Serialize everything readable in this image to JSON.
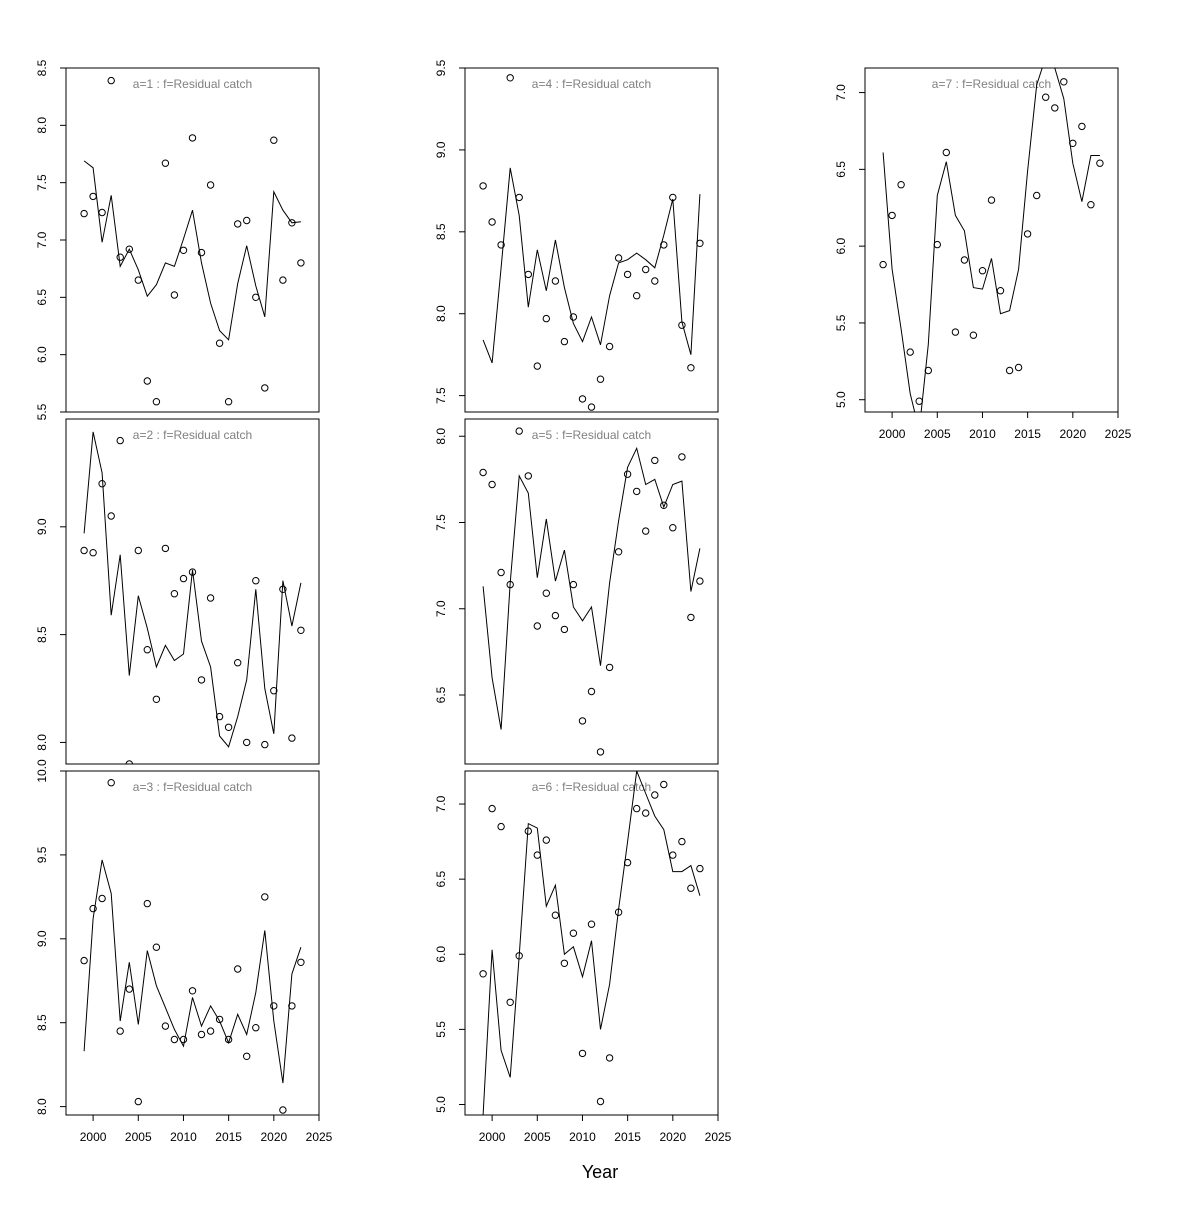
{
  "figure": {
    "xlabel": "Year"
  },
  "chart_data": [
    {
      "type": "scatter",
      "title": "a=1  :  f=Residual catch",
      "xlim": [
        1997,
        2025
      ],
      "ylim": [
        5.5,
        8.5
      ],
      "yticks": [
        "5.5",
        "6.0",
        "6.5",
        "7.0",
        "7.5",
        "8.0",
        "8.5"
      ],
      "x": [
        1999,
        2000,
        2001,
        2002,
        2003,
        2004,
        2005,
        2006,
        2007,
        2008,
        2009,
        2010,
        2011,
        2012,
        2013,
        2014,
        2015,
        2016,
        2017,
        2018,
        2019,
        2020,
        2021,
        2022,
        2023
      ],
      "series": [
        {
          "style": "points",
          "values": [
            7.23,
            7.38,
            7.24,
            8.39,
            6.85,
            6.92,
            6.65,
            5.77,
            5.59,
            7.67,
            6.52,
            6.91,
            7.89,
            6.89,
            7.48,
            6.1,
            5.59,
            7.14,
            7.17,
            6.5,
            5.71,
            7.87,
            6.65,
            7.15,
            6.8
          ]
        },
        {
          "style": "line",
          "values": [
            7.69,
            7.63,
            6.98,
            7.39,
            6.77,
            6.92,
            6.74,
            6.51,
            6.61,
            6.8,
            6.77,
            7.01,
            7.26,
            6.8,
            6.45,
            6.21,
            6.13,
            6.62,
            6.95,
            6.6,
            6.33,
            7.42,
            7.26,
            7.15,
            7.16
          ]
        }
      ]
    },
    {
      "type": "scatter",
      "title": "a=2  :  f=Residual catch",
      "xlim": [
        1997,
        2025
      ],
      "ylim": [
        7.9,
        9.5
      ],
      "yticks": [
        "8.0",
        "8.5",
        "9.0"
      ],
      "x": [
        1999,
        2000,
        2001,
        2002,
        2003,
        2004,
        2005,
        2006,
        2007,
        2008,
        2009,
        2010,
        2011,
        2012,
        2013,
        2014,
        2015,
        2016,
        2017,
        2018,
        2019,
        2020,
        2021,
        2022,
        2023
      ],
      "series": [
        {
          "style": "points",
          "values": [
            8.89,
            8.88,
            9.2,
            9.05,
            9.4,
            7.9,
            8.89,
            8.43,
            8.2,
            8.9,
            8.69,
            8.76,
            8.79,
            8.29,
            8.67,
            8.12,
            8.07,
            8.37,
            8.0,
            8.75,
            7.99,
            8.24,
            8.71,
            8.02,
            8.52
          ]
        },
        {
          "style": "line",
          "values": [
            8.97,
            9.44,
            9.25,
            8.59,
            8.87,
            8.31,
            8.68,
            8.53,
            8.35,
            8.45,
            8.38,
            8.41,
            8.8,
            8.47,
            8.35,
            8.03,
            7.98,
            8.12,
            8.29,
            8.71,
            8.25,
            8.04,
            8.75,
            8.54,
            8.74
          ]
        }
      ]
    },
    {
      "type": "scatter",
      "title": "a=3  :  f=Residual catch",
      "xlim": [
        1997,
        2025
      ],
      "ylim": [
        7.95,
        10.0
      ],
      "yticks": [
        "8.0",
        "8.5",
        "9.0",
        "9.5",
        "10.0"
      ],
      "x": [
        1999,
        2000,
        2001,
        2002,
        2003,
        2004,
        2005,
        2006,
        2007,
        2008,
        2009,
        2010,
        2011,
        2012,
        2013,
        2014,
        2015,
        2016,
        2017,
        2018,
        2019,
        2020,
        2021,
        2022,
        2023
      ],
      "series": [
        {
          "style": "points",
          "values": [
            8.87,
            9.18,
            9.24,
            9.93,
            8.45,
            8.7,
            8.03,
            9.21,
            8.95,
            8.48,
            8.4,
            8.4,
            8.69,
            8.43,
            8.45,
            8.52,
            8.4,
            8.82,
            8.3,
            8.47,
            9.25,
            8.6,
            7.98,
            8.6,
            8.86
          ]
        },
        {
          "style": "line",
          "values": [
            8.33,
            9.12,
            9.47,
            9.27,
            8.51,
            8.86,
            8.49,
            8.93,
            8.72,
            8.59,
            8.46,
            8.36,
            8.65,
            8.48,
            8.6,
            8.51,
            8.38,
            8.55,
            8.43,
            8.68,
            9.05,
            8.51,
            8.14,
            8.79,
            8.95
          ]
        }
      ]
    },
    {
      "type": "scatter",
      "title": "a=4  :  f=Residual catch",
      "xlim": [
        1997,
        2025
      ],
      "ylim": [
        7.4,
        9.5
      ],
      "yticks": [
        "7.5",
        "8.0",
        "8.5",
        "9.0",
        "9.5"
      ],
      "x": [
        1999,
        2000,
        2001,
        2002,
        2003,
        2004,
        2005,
        2006,
        2007,
        2008,
        2009,
        2010,
        2011,
        2012,
        2013,
        2014,
        2015,
        2016,
        2017,
        2018,
        2019,
        2020,
        2021,
        2022,
        2023
      ],
      "series": [
        {
          "style": "points",
          "values": [
            8.78,
            8.56,
            8.42,
            9.44,
            8.71,
            8.24,
            7.68,
            7.97,
            8.2,
            7.83,
            7.98,
            7.48,
            7.43,
            7.6,
            7.8,
            8.34,
            8.24,
            8.11,
            8.27,
            8.2,
            8.42,
            8.71,
            7.93,
            7.67,
            8.43
          ]
        },
        {
          "style": "line",
          "values": [
            7.84,
            7.7,
            8.28,
            8.89,
            8.6,
            8.04,
            8.39,
            8.14,
            8.45,
            8.16,
            7.94,
            7.83,
            7.98,
            7.81,
            8.11,
            8.31,
            8.33,
            8.37,
            8.33,
            8.28,
            8.48,
            8.7,
            7.95,
            7.75,
            8.73
          ]
        }
      ]
    },
    {
      "type": "scatter",
      "title": "a=5  :  f=Residual catch",
      "xlim": [
        1997,
        2025
      ],
      "ylim": [
        6.1,
        8.1
      ],
      "yticks": [
        "6.5",
        "7.0",
        "7.5",
        "8.0"
      ],
      "x": [
        1999,
        2000,
        2001,
        2002,
        2003,
        2004,
        2005,
        2006,
        2007,
        2008,
        2009,
        2010,
        2011,
        2012,
        2013,
        2014,
        2015,
        2016,
        2017,
        2018,
        2019,
        2020,
        2021,
        2022,
        2023
      ],
      "series": [
        {
          "style": "points",
          "values": [
            7.79,
            7.72,
            7.21,
            7.14,
            8.03,
            7.77,
            6.9,
            7.09,
            6.96,
            6.88,
            7.14,
            6.35,
            6.52,
            6.17,
            6.66,
            7.33,
            7.78,
            7.68,
            7.45,
            7.86,
            7.6,
            7.47,
            7.88,
            6.95,
            7.16
          ]
        },
        {
          "style": "line",
          "values": [
            7.13,
            6.6,
            6.3,
            7.15,
            7.77,
            7.67,
            7.18,
            7.52,
            7.16,
            7.34,
            7.01,
            6.93,
            7.01,
            6.67,
            7.15,
            7.51,
            7.82,
            7.93,
            7.72,
            7.75,
            7.59,
            7.72,
            7.74,
            7.1,
            7.35
          ]
        }
      ]
    },
    {
      "type": "scatter",
      "title": "a=6  :  f=Residual catch",
      "xlim": [
        1997,
        2025
      ],
      "ylim": [
        4.93,
        7.22
      ],
      "yticks": [
        "5.0",
        "5.5",
        "6.0",
        "6.5",
        "7.0"
      ],
      "x": [
        1999,
        2000,
        2001,
        2002,
        2003,
        2004,
        2005,
        2006,
        2007,
        2008,
        2009,
        2010,
        2011,
        2012,
        2013,
        2014,
        2015,
        2016,
        2017,
        2018,
        2019,
        2020,
        2021,
        2022,
        2023
      ],
      "series": [
        {
          "style": "points",
          "values": [
            5.87,
            6.97,
            6.85,
            5.68,
            5.99,
            6.82,
            6.66,
            6.76,
            6.26,
            5.94,
            6.14,
            5.34,
            6.2,
            5.02,
            5.31,
            6.28,
            6.61,
            6.97,
            6.94,
            7.06,
            7.13,
            6.66,
            6.75,
            6.44,
            6.57
          ]
        },
        {
          "style": "line",
          "values": [
            4.93,
            6.03,
            5.36,
            5.18,
            5.99,
            6.87,
            6.84,
            6.32,
            6.46,
            6.0,
            6.05,
            5.85,
            6.09,
            5.5,
            5.8,
            6.3,
            6.75,
            7.22,
            7.07,
            6.92,
            6.83,
            6.55,
            6.55,
            6.59,
            6.39
          ]
        }
      ]
    },
    {
      "type": "scatter",
      "title": "a=7  :  f=Residual catch",
      "xlim": [
        1997,
        2025
      ],
      "ylim": [
        4.92,
        7.16
      ],
      "yticks": [
        "5.0",
        "5.5",
        "6.0",
        "6.5",
        "7.0"
      ],
      "x": [
        1999,
        2000,
        2001,
        2002,
        2003,
        2004,
        2005,
        2006,
        2007,
        2008,
        2009,
        2010,
        2011,
        2012,
        2013,
        2014,
        2015,
        2016,
        2017,
        2018,
        2019,
        2020,
        2021,
        2022,
        2023
      ],
      "series": [
        {
          "style": "points",
          "values": [
            5.88,
            6.2,
            6.4,
            5.31,
            4.99,
            5.19,
            6.01,
            6.61,
            5.44,
            5.91,
            5.42,
            5.84,
            6.3,
            5.71,
            5.19,
            5.21,
            6.08,
            6.33,
            6.97,
            6.9,
            7.07,
            6.67,
            6.78,
            6.27,
            6.54
          ]
        },
        {
          "style": "line",
          "values": [
            6.61,
            5.85,
            5.46,
            5.04,
            4.8,
            5.36,
            6.33,
            6.55,
            6.2,
            6.1,
            5.73,
            5.72,
            5.92,
            5.56,
            5.58,
            5.85,
            6.49,
            7.05,
            7.23,
            7.16,
            6.96,
            6.54,
            6.29,
            6.59,
            6.59
          ]
        }
      ]
    }
  ]
}
